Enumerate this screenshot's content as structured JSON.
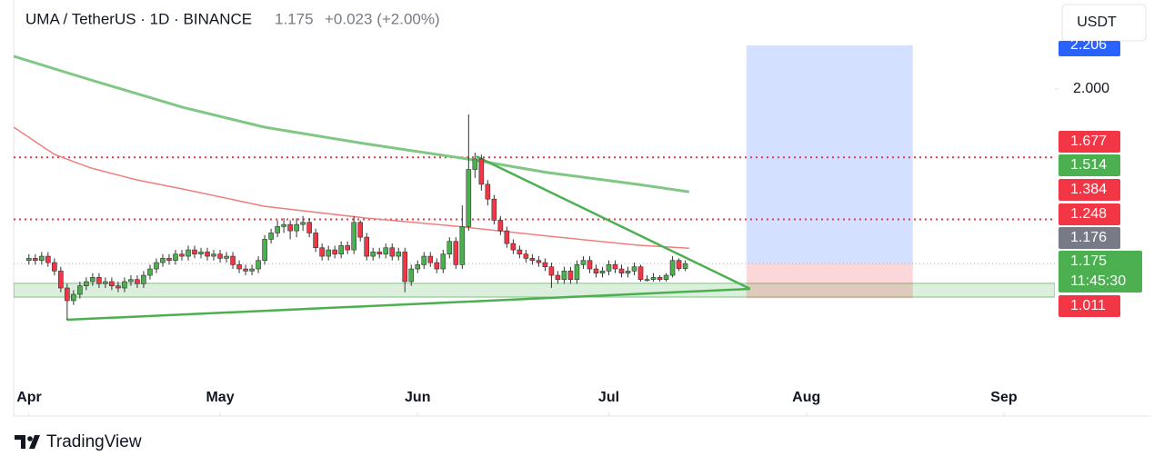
{
  "chart_data": {
    "type": "candlestick",
    "title": "UMA / TetherUS · 1D · BINANCE",
    "last": "1.175",
    "change": "+0.023 (+2.00%)",
    "currency": "USDT",
    "brand": "TradingView",
    "countdown": "11:45:30",
    "up_color": "#4caf50",
    "down_color": "#f23645",
    "grid": false,
    "xlim": [
      -2.4,
      161
    ],
    "xticks": [
      {
        "value": 0,
        "label": "Apr"
      },
      {
        "value": 30,
        "label": "May"
      },
      {
        "value": 61,
        "label": "Jun"
      },
      {
        "value": 91,
        "label": "Jul"
      },
      {
        "value": 122,
        "label": "Aug"
      },
      {
        "value": 153,
        "label": "Sep"
      }
    ],
    "ylim": [
      0.618,
      2.249
    ],
    "yticks": [
      {
        "value": 2,
        "label": "2.000"
      }
    ],
    "open": [
      1.19,
      1.2,
      1.19,
      1.21,
      1.18,
      1.14,
      1.06,
      1.0,
      1.03,
      1.07,
      1.09,
      1.11,
      1.08,
      1.09,
      1.07,
      1.06,
      1.09,
      1.1,
      1.08,
      1.12,
      1.15,
      1.18,
      1.2,
      1.19,
      1.22,
      1.21,
      1.24,
      1.22,
      1.23,
      1.21,
      1.22,
      1.2,
      1.21,
      1.17,
      1.15,
      1.14,
      1.15,
      1.19,
      1.29,
      1.32,
      1.35,
      1.36,
      1.33,
      1.36,
      1.37,
      1.32,
      1.25,
      1.21,
      1.24,
      1.22,
      1.26,
      1.24,
      1.37,
      1.3,
      1.21,
      1.23,
      1.22,
      1.25,
      1.21,
      1.23,
      1.09,
      1.15,
      1.17,
      1.21,
      1.18,
      1.15,
      1.22,
      1.28,
      1.17,
      1.35,
      1.62,
      1.67,
      1.55,
      1.48,
      1.38,
      1.33,
      1.27,
      1.24,
      1.22,
      1.2,
      1.19,
      1.18,
      1.16,
      1.12,
      1.1,
      1.14,
      1.1,
      1.17,
      1.19,
      1.15,
      1.13,
      1.14,
      1.17,
      1.15,
      1.13,
      1.14,
      1.16,
      1.1,
      1.1,
      1.11,
      1.1,
      1.12,
      1.19,
      1.152
    ],
    "high": [
      1.22,
      1.22,
      1.23,
      1.23,
      1.2,
      1.16,
      1.08,
      1.05,
      1.09,
      1.11,
      1.13,
      1.13,
      1.11,
      1.11,
      1.09,
      1.11,
      1.12,
      1.12,
      1.14,
      1.17,
      1.2,
      1.22,
      1.22,
      1.24,
      1.24,
      1.26,
      1.26,
      1.25,
      1.25,
      1.24,
      1.24,
      1.23,
      1.23,
      1.19,
      1.17,
      1.17,
      1.21,
      1.31,
      1.34,
      1.38,
      1.39,
      1.38,
      1.39,
      1.4,
      1.39,
      1.34,
      1.27,
      1.26,
      1.26,
      1.28,
      1.28,
      1.4,
      1.38,
      1.32,
      1.25,
      1.25,
      1.27,
      1.27,
      1.25,
      1.25,
      1.17,
      1.19,
      1.23,
      1.23,
      1.2,
      1.24,
      1.3,
      1.3,
      1.45,
      1.88,
      1.7,
      1.69,
      1.57,
      1.5,
      1.4,
      1.35,
      1.29,
      1.26,
      1.24,
      1.22,
      1.21,
      1.2,
      1.18,
      1.14,
      1.16,
      1.16,
      1.19,
      1.21,
      1.21,
      1.17,
      1.16,
      1.19,
      1.19,
      1.17,
      1.16,
      1.18,
      1.17,
      1.12,
      1.13,
      1.12,
      1.13,
      1.21,
      1.2,
      1.19
    ],
    "low": [
      1.17,
      1.17,
      1.17,
      1.16,
      1.12,
      1.04,
      0.91,
      0.98,
      1.01,
      1.05,
      1.07,
      1.06,
      1.06,
      1.05,
      1.04,
      1.04,
      1.07,
      1.06,
      1.06,
      1.1,
      1.13,
      1.16,
      1.17,
      1.17,
      1.19,
      1.19,
      1.2,
      1.2,
      1.19,
      1.19,
      1.18,
      1.18,
      1.15,
      1.13,
      1.12,
      1.12,
      1.13,
      1.17,
      1.27,
      1.3,
      1.32,
      1.29,
      1.3,
      1.33,
      1.3,
      1.23,
      1.19,
      1.19,
      1.2,
      1.2,
      1.22,
      1.22,
      1.28,
      1.19,
      1.19,
      1.2,
      1.2,
      1.19,
      1.19,
      1.04,
      1.07,
      1.13,
      1.15,
      1.16,
      1.13,
      1.13,
      1.2,
      1.15,
      1.15,
      1.33,
      1.58,
      1.52,
      1.45,
      1.36,
      1.31,
      1.25,
      1.22,
      1.2,
      1.18,
      1.17,
      1.16,
      1.14,
      1.06,
      1.08,
      1.08,
      1.08,
      1.08,
      1.15,
      1.13,
      1.11,
      1.11,
      1.12,
      1.13,
      1.11,
      1.11,
      1.12,
      1.09,
      1.09,
      1.09,
      1.09,
      1.09,
      1.11,
      1.14,
      1.14
    ],
    "close": [
      1.2,
      1.19,
      1.21,
      1.18,
      1.14,
      1.06,
      1.0,
      1.03,
      1.07,
      1.09,
      1.11,
      1.08,
      1.09,
      1.07,
      1.06,
      1.09,
      1.1,
      1.08,
      1.12,
      1.15,
      1.18,
      1.2,
      1.19,
      1.22,
      1.21,
      1.24,
      1.22,
      1.23,
      1.21,
      1.22,
      1.2,
      1.21,
      1.17,
      1.15,
      1.14,
      1.15,
      1.19,
      1.29,
      1.32,
      1.35,
      1.36,
      1.33,
      1.36,
      1.37,
      1.32,
      1.25,
      1.21,
      1.24,
      1.22,
      1.26,
      1.24,
      1.37,
      1.3,
      1.21,
      1.23,
      1.22,
      1.25,
      1.21,
      1.23,
      1.09,
      1.15,
      1.17,
      1.21,
      1.18,
      1.15,
      1.22,
      1.28,
      1.17,
      1.35,
      1.62,
      1.67,
      1.55,
      1.48,
      1.38,
      1.33,
      1.27,
      1.24,
      1.22,
      1.2,
      1.19,
      1.18,
      1.16,
      1.12,
      1.1,
      1.14,
      1.1,
      1.17,
      1.19,
      1.15,
      1.13,
      1.14,
      1.17,
      1.15,
      1.13,
      1.14,
      1.16,
      1.1,
      1.1,
      1.11,
      1.1,
      1.12,
      1.19,
      1.152,
      1.175
    ],
    "moving_averages": [
      {
        "color": "#81c784",
        "x": [
          -2.4,
          9.7,
          24.1,
          36.96,
          52.7,
          69.9,
          81.4,
          95.7,
          103.6
        ],
        "values": [
          2.155,
          2.043,
          1.914,
          1.82,
          1.742,
          1.665,
          1.605,
          1.549,
          1.514
        ]
      },
      {
        "color": "#ef7f7f",
        "x": [
          -2.4,
          4,
          9.7,
          16.9,
          24.1,
          36.96,
          52.7,
          67,
          81.4,
          95.7,
          103.6
        ],
        "values": [
          1.82,
          1.691,
          1.627,
          1.571,
          1.528,
          1.446,
          1.391,
          1.352,
          1.305,
          1.262,
          1.248
        ]
      }
    ],
    "trendlines": [
      {
        "color": "#4caf50",
        "x": [
          70.2,
          113.2
        ],
        "values": [
          1.682,
          1.056
        ]
      },
      {
        "color": "#4caf50",
        "x": [
          5.9,
          113.2
        ],
        "values": [
          0.91,
          1.056
        ]
      }
    ],
    "zone": {
      "color": "#4caf50",
      "values": [
        1.017,
        1.082
      ]
    },
    "position": {
      "x": [
        112.6,
        138.7
      ],
      "target": 2.206,
      "entry": 1.175,
      "stop": 1.011
    },
    "price_labels": [
      {
        "value": 2.206,
        "color": "#2962ff"
      },
      {
        "value": 1.677,
        "color": "#f23645",
        "line": "dotted"
      },
      {
        "value": 1.514,
        "color": "#4caf50"
      },
      {
        "value": 1.384,
        "color": "#f23645",
        "line": "dotted"
      },
      {
        "value": 1.248,
        "color": "#f23645"
      },
      {
        "value": 1.176,
        "color": "#787b86"
      },
      {
        "value": 1.175,
        "color": "#4caf50",
        "line": "dotted"
      },
      {
        "value": 1.011,
        "color": "#f23645"
      }
    ]
  }
}
